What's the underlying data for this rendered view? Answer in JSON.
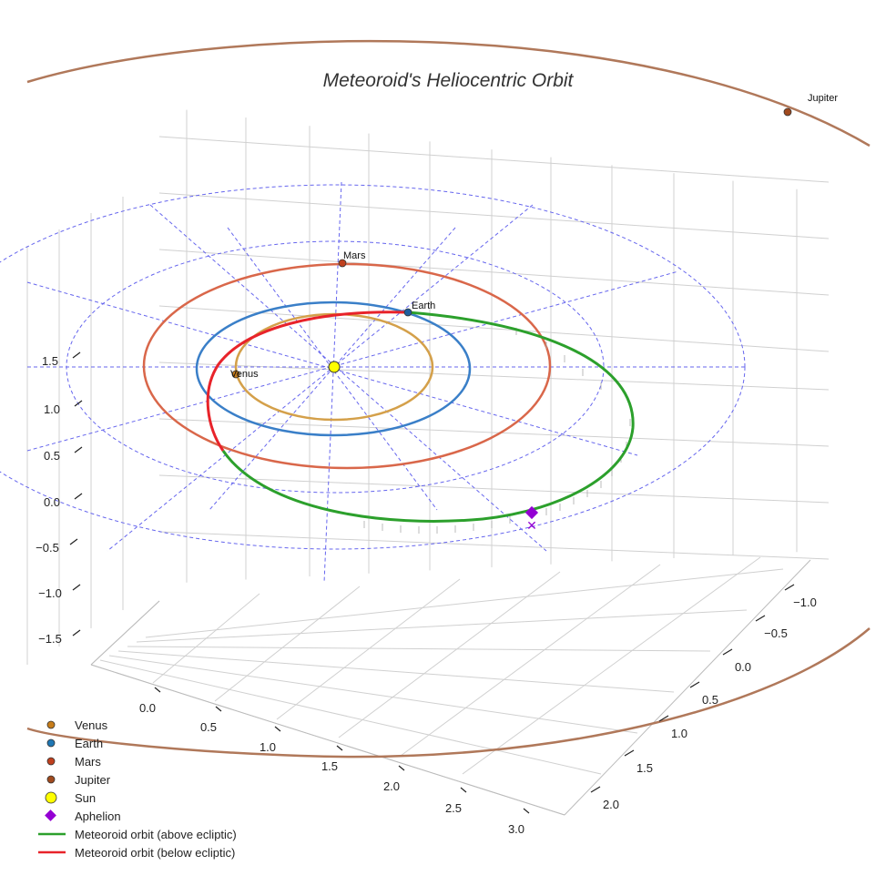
{
  "chart_data": {
    "type": "3d-orbit",
    "title": "Meteoroid's Heliocentric Orbit",
    "x_ticks": [
      "0.0",
      "0.5",
      "1.0",
      "1.5",
      "2.0",
      "2.5",
      "3.0"
    ],
    "y_ticks": [
      "−1.0",
      "−0.5",
      "0.0",
      "0.5",
      "1.0",
      "1.5",
      "2.0"
    ],
    "z_ticks": [
      "1.5",
      "1.0",
      "0.5",
      "0.0",
      "−0.5",
      "−1.0",
      "−1.5"
    ],
    "planets": [
      {
        "name": "Venus",
        "orbit_radius_au": 0.72,
        "color": "#d4a04a",
        "marker": "#c77d1a"
      },
      {
        "name": "Earth",
        "orbit_radius_au": 1.0,
        "color": "#3a7fc8",
        "marker": "#1f5f9e"
      },
      {
        "name": "Mars",
        "orbit_radius_au": 1.52,
        "color": "#d9674a",
        "marker": "#c0401e"
      },
      {
        "name": "Jupiter",
        "orbit_radius_au": 5.2,
        "color": "#b0785a",
        "marker": "#a04a1e"
      }
    ],
    "sun": {
      "name": "Sun",
      "color": "#ffff00"
    },
    "aphelion": {
      "name": "Aphelion",
      "color": "#9400d3"
    },
    "meteoroid": {
      "above_label": "Meteoroid orbit (above ecliptic)",
      "below_label": "Meteoroid orbit (below ecliptic)",
      "above_color": "#2ca02c",
      "below_color": "#e8232a"
    },
    "legend": [
      {
        "label": "Venus",
        "kind": "dot",
        "color": "#c77d1a"
      },
      {
        "label": "Earth",
        "kind": "dot",
        "color": "#1f77b4"
      },
      {
        "label": "Mars",
        "kind": "dot",
        "color": "#c0401e"
      },
      {
        "label": "Jupiter",
        "kind": "dot",
        "color": "#a04a1e"
      },
      {
        "label": "Sun",
        "kind": "bigdot",
        "color": "#ffff00"
      },
      {
        "label": "Aphelion",
        "kind": "diamond",
        "color": "#9400d3"
      },
      {
        "label": "Meteoroid orbit (above ecliptic)",
        "kind": "line",
        "color": "#2ca02c"
      },
      {
        "label": "Meteoroid orbit (below ecliptic)",
        "kind": "line",
        "color": "#e8232a"
      }
    ]
  }
}
